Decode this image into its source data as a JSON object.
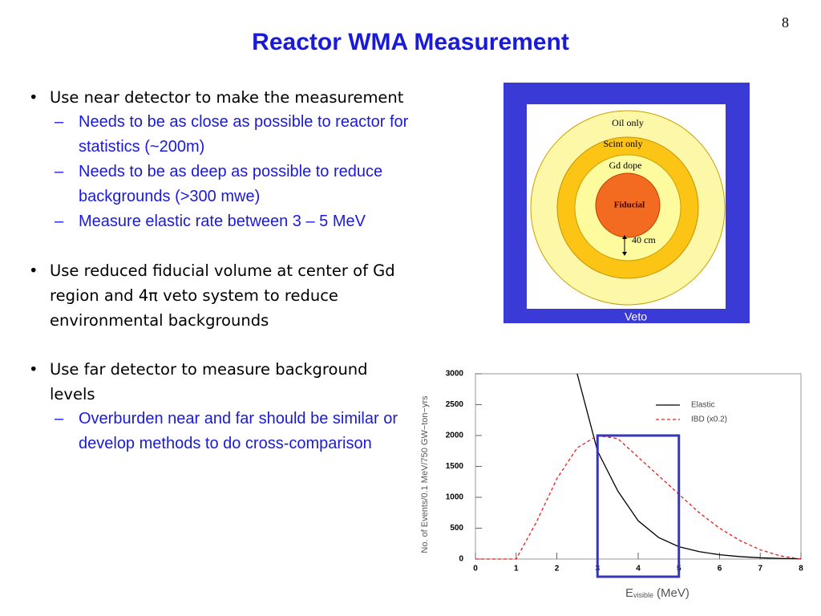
{
  "page_number": "8",
  "title": "Reactor WMA Measurement",
  "bullets": [
    {
      "text": "Use near detector to make the measurement",
      "sub": [
        "Needs to be as close as possible to reactor for statistics (~200m)",
        "Needs to be as deep as possible to reduce backgrounds (>300 mwe)",
        "Measure elastic rate between 3 – 5 MeV"
      ]
    },
    {
      "text": "Use reduced fiducial volume at center of Gd region and 4π veto system to reduce environmental backgrounds",
      "sub": []
    },
    {
      "text": "Use far detector to measure background levels",
      "sub": [
        "Overburden near and far should be similar or develop methods to do cross-comparison"
      ]
    }
  ],
  "diagram": {
    "oil": "Oil only",
    "scint": "Scint only",
    "gd": "Gd dope",
    "fiducial": "Fiducial",
    "distance": "40 cm",
    "veto": "Veto"
  },
  "chart_data": {
    "type": "line",
    "y_label": "No. of Events/0.1 MeV/750 GW−ton−yrs",
    "x_label": {
      "main": "E",
      "sub": "visible",
      "unit": "(MeV)"
    },
    "x": [
      0,
      0.5,
      1,
      1.5,
      2,
      2.5,
      3,
      3.5,
      4,
      4.5,
      5,
      5.5,
      6,
      6.5,
      7,
      7.5,
      8
    ],
    "series": [
      {
        "name": "Elastic",
        "color": "#000000",
        "dash": false,
        "values": [
          null,
          null,
          null,
          null,
          null,
          3000,
          1750,
          1100,
          620,
          350,
          200,
          120,
          70,
          40,
          20,
          10,
          5
        ]
      },
      {
        "name": "IBD (x0.2)",
        "color": "#e8201e",
        "dash": true,
        "values": [
          0,
          0,
          0,
          600,
          1300,
          1800,
          2000,
          1950,
          1650,
          1350,
          1050,
          750,
          500,
          300,
          150,
          50,
          0
        ]
      }
    ],
    "xlim": [
      0,
      8
    ],
    "ylim": [
      0,
      3000
    ],
    "xticks": [
      0,
      1,
      2,
      3,
      4,
      5,
      6,
      7,
      8
    ],
    "yticks": [
      0,
      500,
      1000,
      1500,
      2000,
      2500,
      3000
    ],
    "highlight": {
      "xlim": [
        3,
        5
      ],
      "ylim": [
        0,
        2000
      ],
      "color": "#3636b8"
    }
  }
}
